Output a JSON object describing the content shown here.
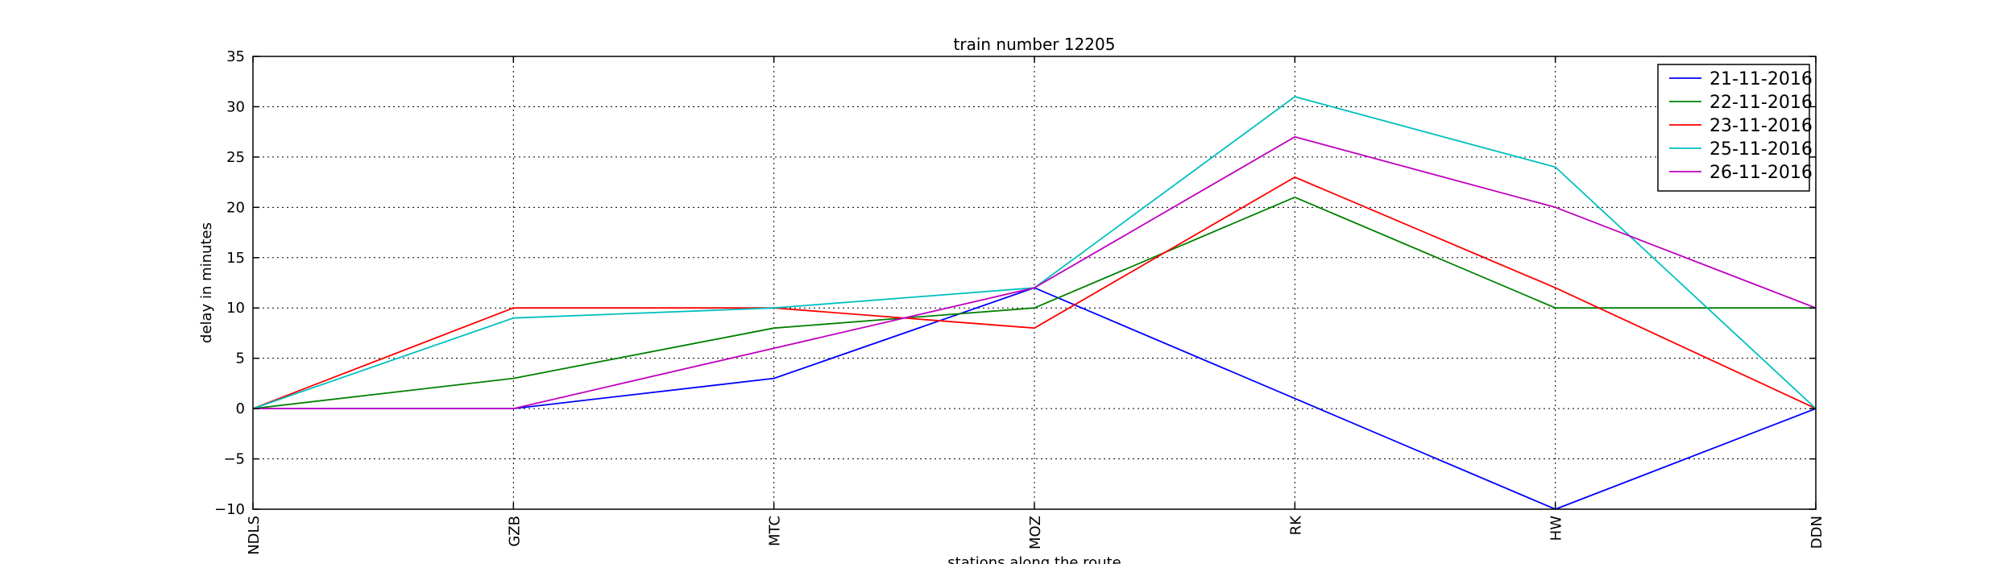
{
  "chart_data": {
    "type": "line",
    "title": "train number 12205",
    "xlabel": "stations along the route",
    "ylabel": "delay in minutes",
    "categories": [
      "NDLS",
      "GZB",
      "MTC",
      "MOZ",
      "RK",
      "HW",
      "DDN"
    ],
    "ylim": [
      -10,
      35
    ],
    "yticks": [
      -10,
      -5,
      0,
      5,
      10,
      15,
      20,
      25,
      30,
      35
    ],
    "grid": true,
    "legend_position": "top-right",
    "series": [
      {
        "name": "21-11-2016",
        "color": "#0000ff",
        "values": [
          0,
          0,
          3,
          12,
          1,
          -10,
          0
        ]
      },
      {
        "name": "22-11-2016",
        "color": "#008000",
        "values": [
          0,
          3,
          8,
          10,
          21,
          10,
          10
        ]
      },
      {
        "name": "23-11-2016",
        "color": "#ff0000",
        "values": [
          0,
          10,
          10,
          8,
          23,
          12,
          0
        ]
      },
      {
        "name": "25-11-2016",
        "color": "#00bfbf",
        "values": [
          0,
          9,
          10,
          12,
          31,
          24,
          0
        ]
      },
      {
        "name": "26-11-2016",
        "color": "#bf00bf",
        "values": [
          0,
          0,
          6,
          12,
          27,
          20,
          10
        ]
      }
    ]
  }
}
